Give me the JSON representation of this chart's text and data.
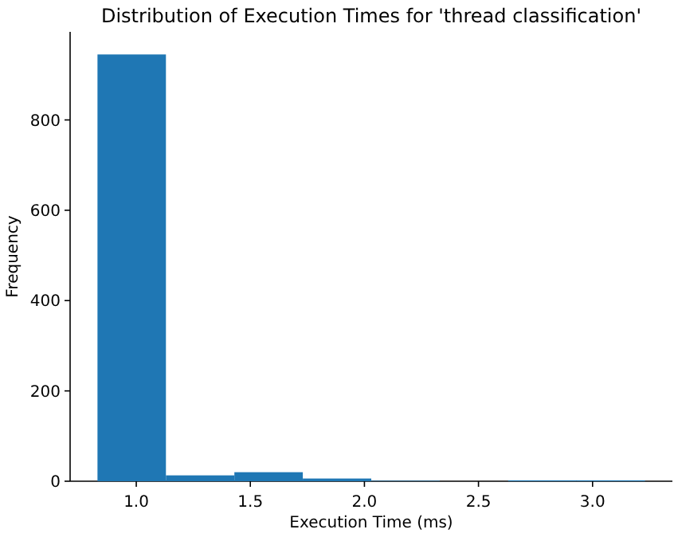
{
  "chart_data": {
    "type": "histogram",
    "title": "Distribution of Execution Times for 'thread classification'",
    "xlabel": "Execution Time (ms)",
    "ylabel": "Frequency",
    "color": "#1f77b4",
    "bins": [
      0.83,
      1.13,
      1.43,
      1.73,
      2.03,
      2.33,
      2.63,
      2.93,
      3.23
    ],
    "values": [
      945,
      13,
      20,
      6,
      1,
      0,
      2,
      2
    ],
    "xlim": [
      0.71,
      3.35
    ],
    "ylim": [
      0,
      995
    ],
    "xticks": [
      {
        "value": 1,
        "label": "1.0"
      },
      1.5,
      {
        "value": 2,
        "label": "2.0"
      },
      2.5,
      {
        "value": 3,
        "label": "3.0"
      }
    ],
    "yticks": [
      0,
      200,
      400,
      600,
      800
    ],
    "grid": false
  }
}
